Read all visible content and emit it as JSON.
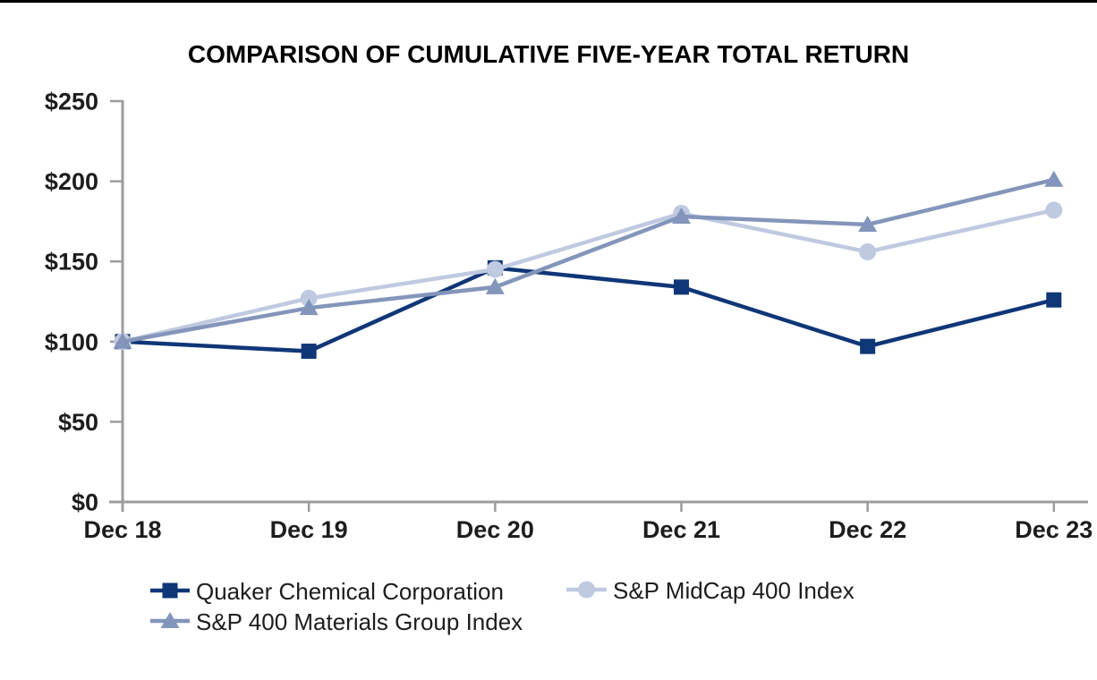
{
  "title": "COMPARISON OF CUMULATIVE FIVE-YEAR TOTAL RETURN",
  "colors": {
    "quaker": "#0f3677",
    "midcap": "#bfc9e0",
    "materials": "#8395ba",
    "axis": "#9c9c9c",
    "text": "#1d1d1f",
    "top_rule": "#000000"
  },
  "chart_data": {
    "type": "line",
    "title": "COMPARISON OF CUMULATIVE FIVE-YEAR TOTAL RETURN",
    "categories": [
      "Dec 18",
      "Dec 19",
      "Dec 20",
      "Dec 21",
      "Dec 22",
      "Dec 23"
    ],
    "series": [
      {
        "name": "Quaker Chemical Corporation",
        "marker": "square",
        "color": "#0f3677",
        "values": [
          100,
          94,
          146,
          134,
          97,
          126
        ]
      },
      {
        "name": "S&P MidCap 400 Index",
        "marker": "circle",
        "color": "#bfc9e0",
        "values": [
          100,
          127,
          145,
          180,
          156,
          182
        ]
      },
      {
        "name": "S&P 400 Materials Group Index",
        "marker": "triangle",
        "color": "#8395ba",
        "values": [
          100,
          121,
          134,
          178,
          173,
          201
        ]
      }
    ],
    "y_tick_labels": [
      "$0",
      "$50",
      "$100",
      "$150",
      "$200",
      "$250"
    ],
    "y_tick_values": [
      0,
      50,
      100,
      150,
      200,
      250
    ],
    "ylim": [
      0,
      250
    ],
    "grid": false,
    "legend_position": "bottom",
    "legend_order": [
      "Quaker Chemical Corporation",
      "S&P MidCap 400 Index",
      "S&P 400 Materials Group Index"
    ]
  }
}
